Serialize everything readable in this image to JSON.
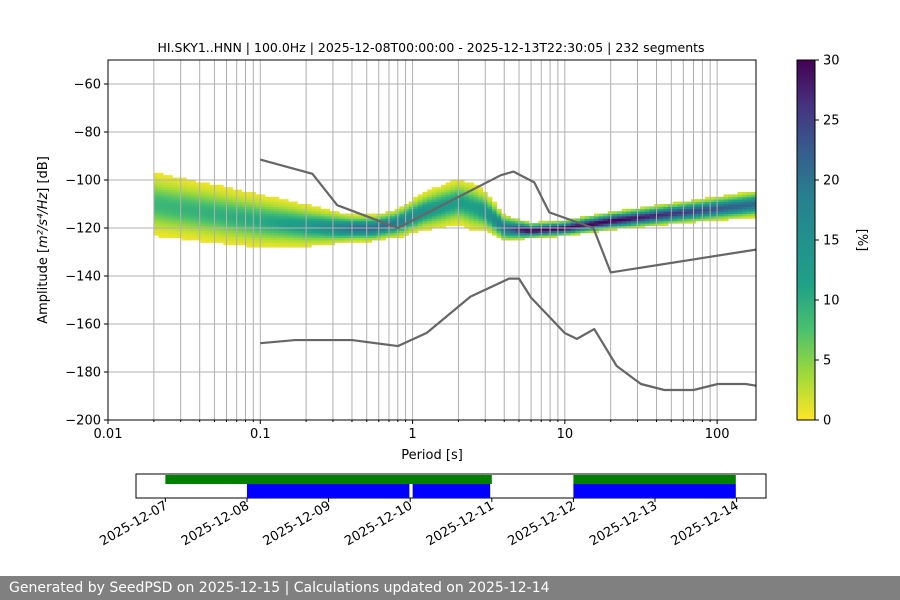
{
  "chart_data": {
    "type": "heatmap",
    "title": "HI.SKY1..HNN | 100.0Hz | 2025-12-08T00:00:00 - 2025-12-13T22:30:05 | 232 segments",
    "xlabel": "Period [s]",
    "ylabel_prefix": "Amplitude [",
    "ylabel_math": "m²/s⁴/Hz",
    "ylabel_suffix": "] [dB]",
    "xscale": "log",
    "xlim": [
      0.01,
      180
    ],
    "ylim": [
      -200,
      -50
    ],
    "xticks": [
      {
        "v": 0.01,
        "label": "0.01"
      },
      {
        "v": 0.1,
        "label": "0.1"
      },
      {
        "v": 1,
        "label": "1"
      },
      {
        "v": 10,
        "label": "10"
      },
      {
        "v": 100,
        "label": "100"
      }
    ],
    "yticks": [
      {
        "v": -60,
        "label": "−60"
      },
      {
        "v": -80,
        "label": "−80"
      },
      {
        "v": -100,
        "label": "−100"
      },
      {
        "v": -120,
        "label": "−120"
      },
      {
        "v": -140,
        "label": "−140"
      },
      {
        "v": -160,
        "label": "−160"
      },
      {
        "v": -180,
        "label": "−180"
      },
      {
        "v": -200,
        "label": "−200"
      }
    ],
    "colorbar": {
      "label": "[%]",
      "min": 0,
      "max": 30,
      "ticks": [
        {
          "v": 0,
          "label": "0"
        },
        {
          "v": 5,
          "label": "5"
        },
        {
          "v": 10,
          "label": "10"
        },
        {
          "v": 15,
          "label": "15"
        },
        {
          "v": 20,
          "label": "20"
        },
        {
          "v": 25,
          "label": "25"
        },
        {
          "v": 30,
          "label": "30"
        }
      ]
    },
    "period_range": [
      0.02,
      180
    ],
    "psd_mode": [
      [
        0.02,
        -110
      ],
      [
        0.05,
        -114
      ],
      [
        0.1,
        -117
      ],
      [
        0.2,
        -119
      ],
      [
        0.35,
        -120
      ],
      [
        0.55,
        -120
      ],
      [
        0.8,
        -118
      ],
      [
        1.2,
        -113
      ],
      [
        2.0,
        -109
      ],
      [
        3.0,
        -113
      ],
      [
        4.0,
        -120
      ],
      [
        6,
        -121
      ],
      [
        10,
        -120
      ],
      [
        20,
        -117
      ],
      [
        50,
        -114
      ],
      [
        180,
        -110
      ]
    ],
    "psd_spread": [
      [
        0.02,
        12
      ],
      [
        0.05,
        11
      ],
      [
        0.1,
        10
      ],
      [
        0.2,
        8
      ],
      [
        0.4,
        5
      ],
      [
        0.7,
        5
      ],
      [
        1.5,
        8
      ],
      [
        2.5,
        9
      ],
      [
        4,
        5
      ],
      [
        6,
        3
      ],
      [
        10,
        3
      ],
      [
        50,
        4
      ],
      [
        180,
        5
      ]
    ],
    "nhnm": [
      [
        0.1,
        -91.5
      ],
      [
        0.22,
        -97.4
      ],
      [
        0.32,
        -110.5
      ],
      [
        0.8,
        -120
      ],
      [
        3.8,
        -98
      ],
      [
        4.6,
        -96.5
      ],
      [
        6.3,
        -101
      ],
      [
        7.9,
        -113.5
      ],
      [
        15.4,
        -120
      ],
      [
        20,
        -138.5
      ],
      [
        180,
        -129
      ]
    ],
    "nlnm": [
      [
        0.1,
        -168
      ],
      [
        0.17,
        -166.7
      ],
      [
        0.4,
        -166.7
      ],
      [
        0.8,
        -169.2
      ],
      [
        1.24,
        -163.7
      ],
      [
        2.4,
        -148.6
      ],
      [
        4.3,
        -141.1
      ],
      [
        5.0,
        -141.1
      ],
      [
        6.0,
        -149
      ],
      [
        10,
        -163.8
      ],
      [
        12,
        -166.2
      ],
      [
        15.6,
        -162.1
      ],
      [
        21.9,
        -177.5
      ],
      [
        31.6,
        -185
      ],
      [
        45,
        -187.5
      ],
      [
        70,
        -187.5
      ],
      [
        101,
        -185
      ],
      [
        154,
        -185
      ],
      [
        180,
        -185.7
      ]
    ],
    "timeline": {
      "ticks": [
        "2025-12-07",
        "2025-12-08",
        "2025-12-09",
        "2025-12-10",
        "2025-12-11",
        "2025-12-12",
        "2025-12-13",
        "2025-12-14"
      ],
      "range_days": [
        -0.36,
        7.36
      ],
      "data_availability": [
        {
          "start": 0.0,
          "end": 4.0
        },
        {
          "start": 5.0,
          "end": 6.99
        }
      ],
      "psd_segments": [
        {
          "start": 1.0,
          "end": 2.99
        },
        {
          "start": 3.03,
          "end": 3.98
        },
        {
          "start": 5.0,
          "end": 6.99
        }
      ],
      "colors": {
        "availability": "#008000",
        "psd": "#0000ff"
      }
    },
    "colors": {
      "nhnm_nlnm": "#666666",
      "grid": "#b0b0b0"
    }
  },
  "footer": {
    "text": "Generated by SeedPSD on 2025-12-15 | Calculations updated on 2025-12-14"
  }
}
